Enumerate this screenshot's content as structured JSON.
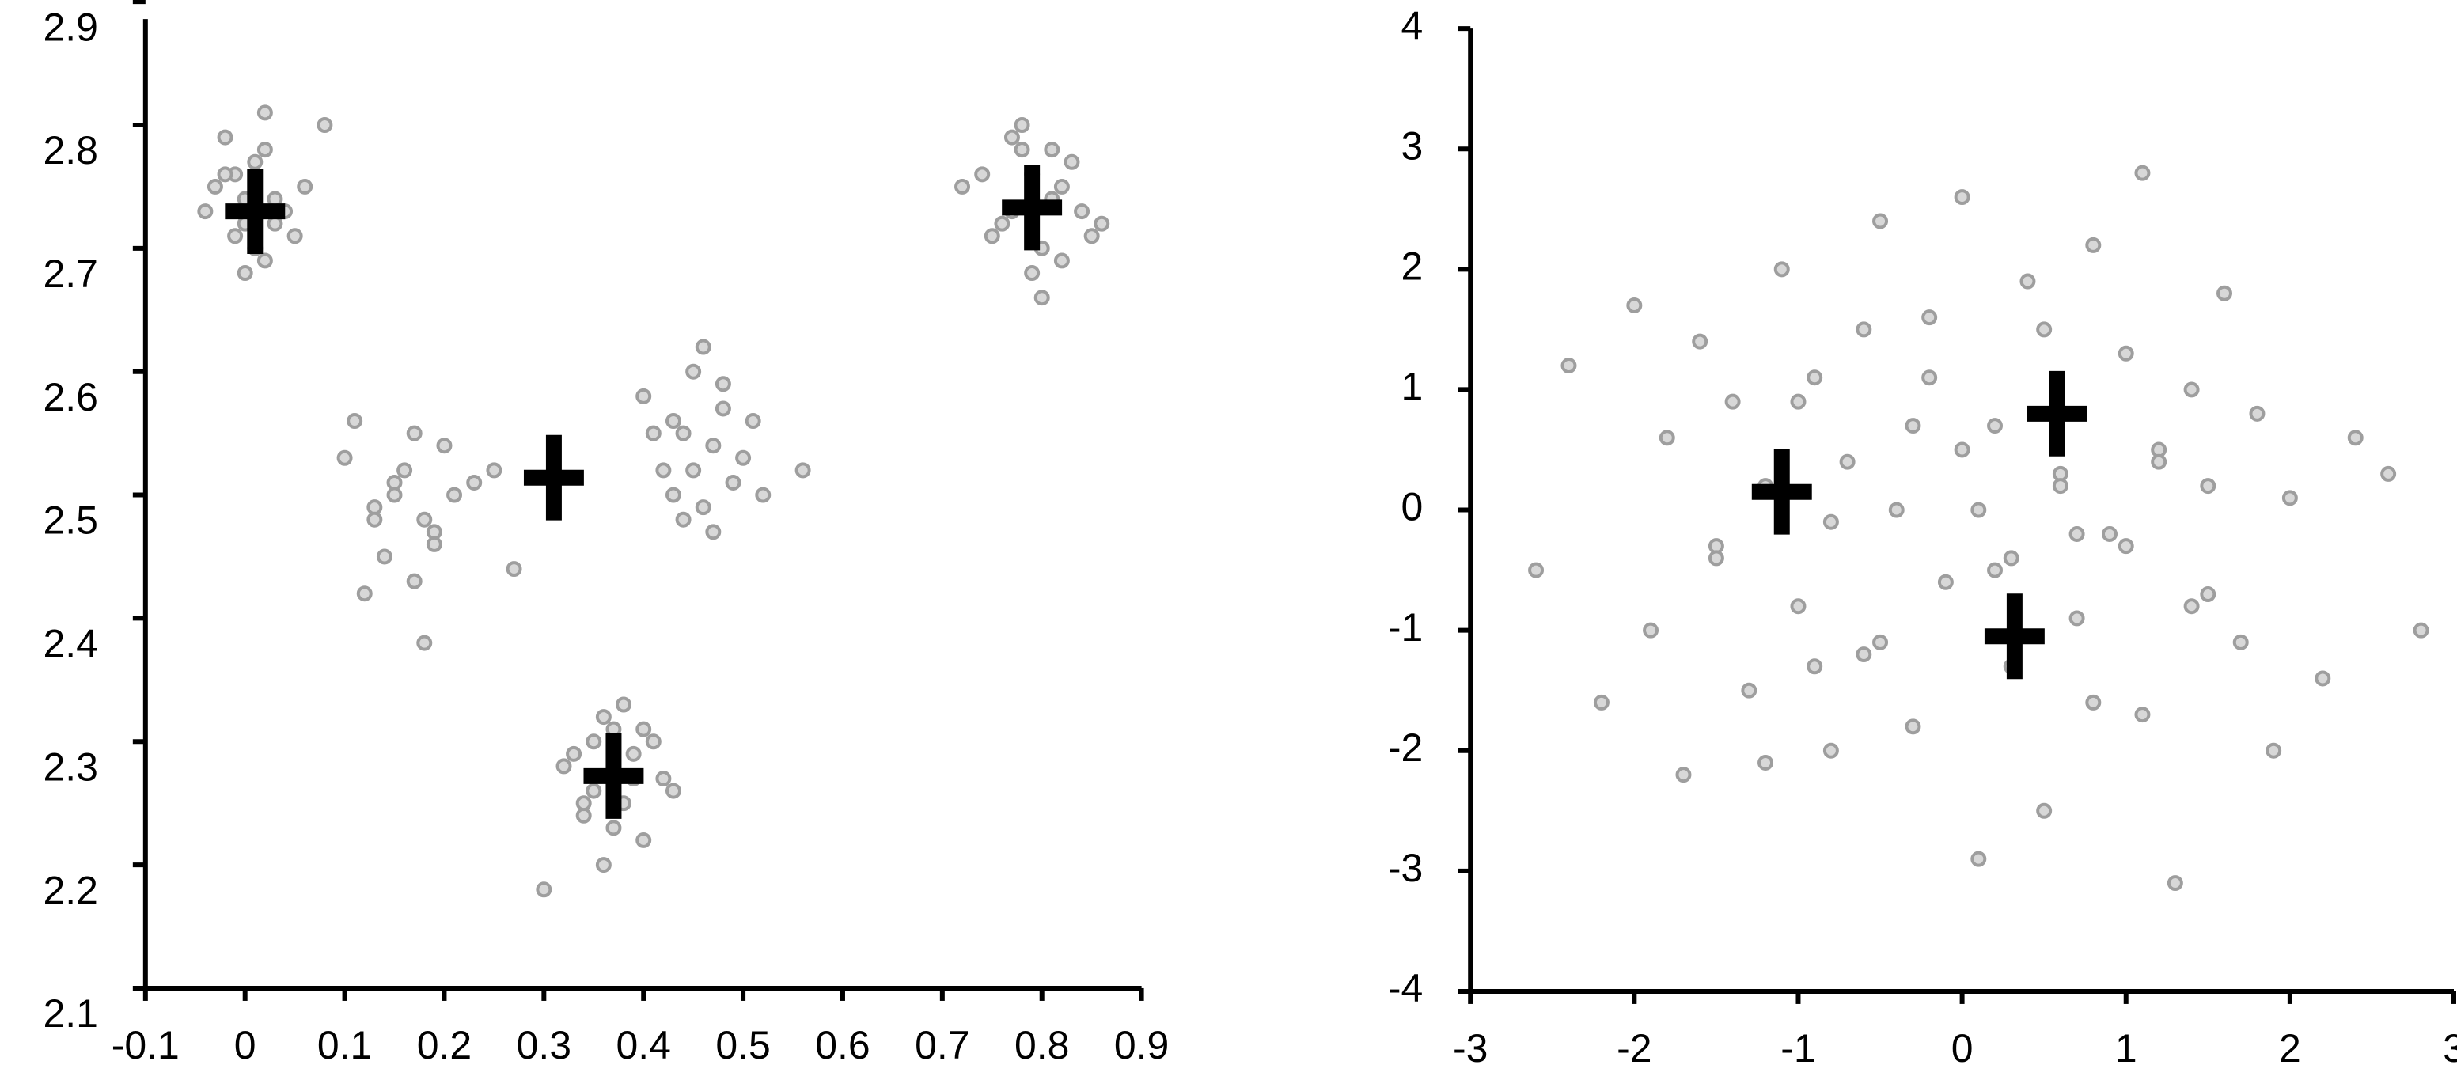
{
  "chart_data": [
    {
      "type": "scatter",
      "xlim": [
        -0.1,
        0.9
      ],
      "ylim": [
        2.1,
        2.9
      ],
      "xticks": [
        -0.1,
        0,
        0.1,
        0.2,
        0.3,
        0.4,
        0.5,
        0.6,
        0.7,
        0.8,
        0.9
      ],
      "yticks": [
        2.1,
        2.2,
        2.3,
        2.4,
        2.5,
        2.6,
        2.7,
        2.8,
        2.9
      ],
      "series": [
        {
          "color": "#9e9e9e",
          "marker": "circle",
          "x": [
            -0.03,
            0.0,
            0.02,
            0.04,
            0.01,
            -0.01,
            0.03,
            0.05,
            -0.02,
            0.0,
            0.02,
            0.06,
            -0.04,
            0.01,
            0.03,
            -0.01,
            0.08,
            0.0,
            0.02,
            -0.02,
            0.1,
            0.13,
            0.15,
            0.17,
            0.19,
            0.21,
            0.14,
            0.16,
            0.18,
            0.12,
            0.2,
            0.23,
            0.15,
            0.17,
            0.11,
            0.19,
            0.25,
            0.13,
            0.18,
            0.27,
            0.4,
            0.42,
            0.44,
            0.46,
            0.48,
            0.5,
            0.43,
            0.45,
            0.47,
            0.49,
            0.41,
            0.44,
            0.46,
            0.51,
            0.52,
            0.45,
            0.48,
            0.56,
            0.43,
            0.47,
            0.33,
            0.35,
            0.37,
            0.39,
            0.41,
            0.34,
            0.36,
            0.38,
            0.4,
            0.32,
            0.42,
            0.36,
            0.38,
            0.35,
            0.39,
            0.3,
            0.43,
            0.37,
            0.34,
            0.4,
            0.74,
            0.76,
            0.78,
            0.8,
            0.82,
            0.84,
            0.77,
            0.79,
            0.81,
            0.75,
            0.83,
            0.86,
            0.78,
            0.8,
            0.72,
            0.82,
            0.79,
            0.77,
            0.85,
            0.81
          ],
          "y": [
            2.75,
            2.72,
            2.78,
            2.73,
            2.7,
            2.76,
            2.74,
            2.71,
            2.79,
            2.68,
            2.81,
            2.75,
            2.73,
            2.77,
            2.72,
            2.71,
            2.8,
            2.74,
            2.69,
            2.76,
            2.53,
            2.49,
            2.51,
            2.55,
            2.47,
            2.5,
            2.45,
            2.52,
            2.48,
            2.42,
            2.54,
            2.51,
            2.5,
            2.43,
            2.56,
            2.46,
            2.52,
            2.48,
            2.38,
            2.44,
            2.58,
            2.52,
            2.55,
            2.49,
            2.57,
            2.53,
            2.5,
            2.6,
            2.54,
            2.51,
            2.55,
            2.48,
            2.62,
            2.56,
            2.5,
            2.52,
            2.59,
            2.52,
            2.56,
            2.47,
            2.29,
            2.26,
            2.31,
            2.27,
            2.3,
            2.24,
            2.32,
            2.25,
            2.22,
            2.28,
            2.27,
            2.2,
            2.33,
            2.3,
            2.29,
            2.18,
            2.26,
            2.23,
            2.25,
            2.31,
            2.76,
            2.72,
            2.78,
            2.7,
            2.75,
            2.73,
            2.79,
            2.68,
            2.74,
            2.71,
            2.77,
            2.72,
            2.8,
            2.66,
            2.75,
            2.69,
            2.76,
            2.73,
            2.71,
            2.78
          ]
        },
        {
          "color": "#000000",
          "marker": "plus",
          "x": [
            0.01,
            0.31,
            0.37,
            0.79
          ],
          "y": [
            2.73,
            2.514,
            2.272,
            2.733
          ]
        }
      ]
    },
    {
      "type": "scatter",
      "xlim": [
        -3,
        3
      ],
      "ylim": [
        -4,
        4
      ],
      "xticks": [
        -3,
        -2,
        -1,
        0,
        1,
        2,
        3
      ],
      "yticks": [
        -4,
        -3,
        -2,
        -1,
        0,
        1,
        2,
        3,
        4
      ],
      "series": [
        {
          "color": "#9e9e9e",
          "marker": "circle",
          "x": [
            -2.6,
            -2.4,
            -2.2,
            -2.0,
            -1.9,
            -1.8,
            -1.7,
            -1.6,
            -1.5,
            -1.4,
            -1.3,
            -1.2,
            -1.1,
            -1.0,
            -0.9,
            -0.8,
            -0.7,
            -0.6,
            -0.5,
            -0.4,
            -0.3,
            -0.2,
            -0.1,
            0.0,
            0.1,
            0.2,
            0.3,
            0.4,
            0.5,
            0.6,
            0.7,
            0.8,
            0.9,
            1.0,
            1.1,
            1.2,
            1.3,
            1.4,
            1.5,
            1.6,
            1.7,
            1.8,
            1.9,
            2.0,
            2.2,
            2.4,
            2.6,
            2.8,
            -1.5,
            -1.0,
            -0.5,
            0.0,
            0.5,
            1.0,
            1.5,
            -0.8,
            -0.3,
            0.2,
            0.7,
            1.2,
            -1.2,
            -0.6,
            0.1,
            0.8,
            1.4,
            -0.2,
            0.3,
            0.6,
            -0.9,
            1.1
          ],
          "y": [
            -0.5,
            1.2,
            -1.6,
            1.7,
            -1.0,
            0.6,
            -2.2,
            1.4,
            -0.3,
            0.9,
            -1.5,
            0.2,
            2.0,
            -0.8,
            1.1,
            -2.0,
            0.4,
            -1.2,
            2.4,
            0.0,
            -1.8,
            1.6,
            -0.6,
            2.6,
            -2.9,
            0.7,
            -1.3,
            1.9,
            -2.5,
            0.3,
            -0.9,
            2.2,
            -0.2,
            1.3,
            -1.7,
            0.5,
            -3.1,
            1.0,
            -0.7,
            1.8,
            -1.1,
            0.8,
            -2.0,
            0.1,
            -1.4,
            0.6,
            0.3,
            -1.0,
            -0.4,
            0.9,
            -1.1,
            0.5,
            1.5,
            -0.3,
            0.2,
            -0.1,
            0.7,
            -0.5,
            -0.2,
            0.4,
            -2.1,
            1.5,
            0.0,
            -1.6,
            -0.8,
            1.1,
            -0.4,
            0.2,
            -1.3,
            2.8
          ]
        },
        {
          "color": "#000000",
          "marker": "plus",
          "x": [
            -1.1,
            0.58,
            0.32
          ],
          "y": [
            0.15,
            0.8,
            -1.05
          ]
        }
      ]
    }
  ]
}
